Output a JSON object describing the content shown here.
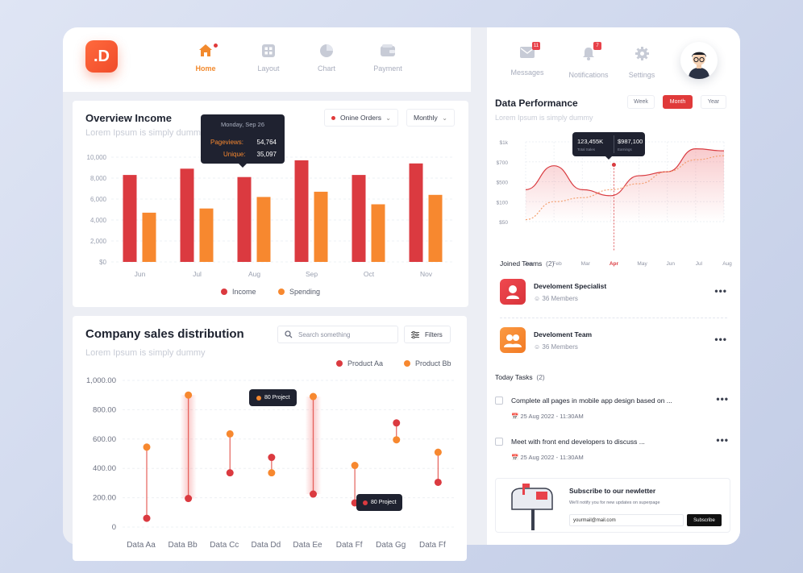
{
  "logo": {
    "text": ".D"
  },
  "nav": [
    {
      "label": "Home",
      "active": true
    },
    {
      "label": "Layout",
      "active": false
    },
    {
      "label": "Chart",
      "active": false
    },
    {
      "label": "Payment",
      "active": false
    }
  ],
  "overview": {
    "title": "Overview Income",
    "subtitle": "Lorem Ipsum is simply dummy",
    "filter_orders": "Onine Orders",
    "filter_period": "Monthly",
    "tooltip": {
      "date": "Monday, Sep 26",
      "pageviews_label": "Pageviews:",
      "pageviews_value": "54,764",
      "unique_label": "Unique:",
      "unique_value": "35,097"
    }
  },
  "sales": {
    "title": "Company sales distribution",
    "subtitle": "Lorem Ipsum is simply dummy",
    "search_placeholder": "Search something",
    "filters_label": "Filters",
    "tooltip1": "80 Project",
    "tooltip2": "80 Project"
  },
  "right": {
    "messages_label": "Messages",
    "messages_badge": "11",
    "notifications_label": "Notifications",
    "notifications_badge": "7",
    "settings_label": "Settings",
    "perf_title": "Data Performance",
    "perf_subtitle": "Lorem Ipsum is simply dummy",
    "seg": [
      "Week",
      "Month",
      "Year"
    ],
    "perf_tooltip": {
      "left_value": "123,455K",
      "left_label": "Total Sales",
      "right_value": "$987,100",
      "right_label": "Earnings"
    },
    "joined_teams_title": "Joined Teams",
    "joined_teams_count": "(2)",
    "teams": [
      {
        "name": "Develoment Specialist",
        "members": "36 Members"
      },
      {
        "name": "Develoment Team",
        "members": "36 Members"
      }
    ],
    "tasks_title": "Today Tasks",
    "tasks_count": "(2)",
    "tasks": [
      {
        "text": "Complete all pages in mobile app design based on ...",
        "date": "25 Aug 2022 - 11:30AM"
      },
      {
        "text": "Meet with front end developers to discuss ...",
        "date": "25 Aug 2022 - 11:30AM"
      }
    ],
    "newsletter": {
      "title": "Subscribe to our newletter",
      "desc": "We'll notify you for new updates on superpage",
      "email": "yourmail@mail.com",
      "button": "Subscribe"
    }
  },
  "colors": {
    "red": "#db3a40",
    "orange": "#f7882f",
    "dark": "#1f2230"
  },
  "chart_data": [
    {
      "type": "bar",
      "title": "Overview Income",
      "categories": [
        "Jun",
        "Jul",
        "Aug",
        "Sep",
        "Oct",
        "Nov"
      ],
      "series": [
        {
          "name": "Income",
          "values": [
            8300,
            8900,
            8100,
            9700,
            8300,
            9400
          ]
        },
        {
          "name": "Spending",
          "values": [
            4700,
            5100,
            6200,
            6700,
            5500,
            6400
          ]
        }
      ],
      "yticks": [
        "$0",
        "2,000",
        "4,000",
        "6,000",
        "8,000",
        "10,000"
      ],
      "ylim": [
        0,
        10000
      ],
      "legend": "bottom",
      "grid": true
    },
    {
      "type": "scatter",
      "title": "Company sales distribution",
      "categories": [
        "Data Aa",
        "Data Bb",
        "Data Cc",
        "Data Dd",
        "Data Ee",
        "Data Ff",
        "Data Gg",
        "Data Ff"
      ],
      "series": [
        {
          "name": "Product Aa",
          "values": [
            60,
            195,
            370,
            475,
            225,
            165,
            710,
            305
          ]
        },
        {
          "name": "Product Bb",
          "values": [
            545,
            900,
            635,
            370,
            890,
            420,
            595,
            510
          ]
        }
      ],
      "yticks": [
        "0",
        "200.00",
        "400.00",
        "600.00",
        "800.00",
        "1,000.00"
      ],
      "ylim": [
        0,
        1000
      ],
      "legend": "top-right",
      "grid": true
    },
    {
      "type": "line",
      "title": "Data Performance",
      "categories": [
        "Jan",
        "Feb",
        "Mar",
        "Apr",
        "May",
        "Jun",
        "Jul",
        "Aug"
      ],
      "yticks": [
        "$50",
        "$100",
        "$500",
        "$700",
        "$1k"
      ],
      "series": [
        {
          "name": "",
          "values": [
            1.6,
            2.8,
            1.6,
            1.3,
            2.3,
            2.5,
            3.65,
            3.55
          ]
        },
        {
          "name": "",
          "values": [
            0.1,
            1.0,
            1.2,
            1.6,
            1.9,
            2.5,
            3.1,
            3.3
          ]
        }
      ],
      "highlight": {
        "category": "Apr",
        "value": 2.85
      },
      "grid": true
    }
  ]
}
